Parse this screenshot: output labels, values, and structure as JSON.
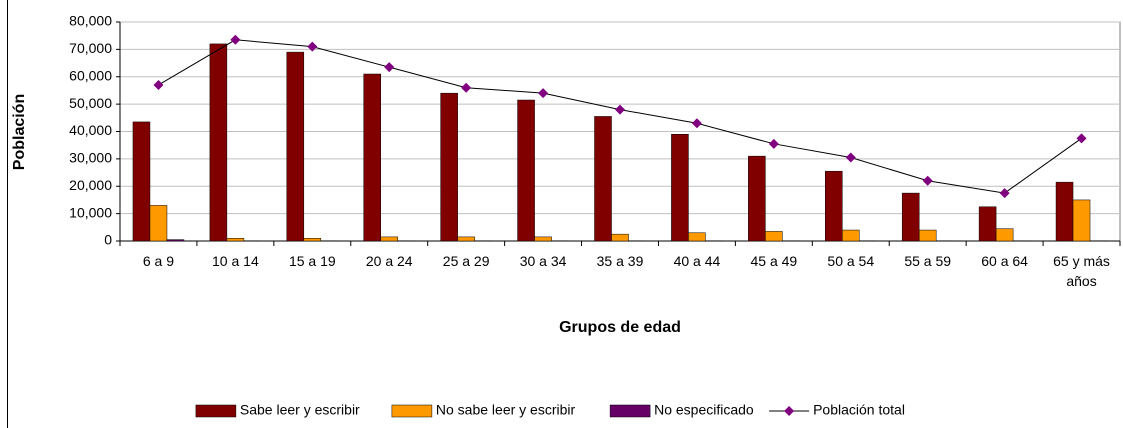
{
  "chart_data": {
    "type": "bar",
    "xlabel": "Grupos de edad",
    "ylabel": "Población",
    "categories": [
      "6 a 9",
      "10 a 14",
      "15 a 19",
      "20 a 24",
      "25 a 29",
      "30 a 34",
      "35 a 39",
      "40 a 44",
      "45 a 49",
      "50 a 54",
      "55 a 59",
      "60 a 64",
      "65 y más años"
    ],
    "series": [
      {
        "name": "Sabe leer y escribir",
        "color": "#800000",
        "type": "bar",
        "values": [
          43500,
          72000,
          69000,
          61000,
          54000,
          51500,
          45500,
          39000,
          31000,
          25500,
          17500,
          12500,
          21500
        ]
      },
      {
        "name": "No sabe leer y escribir",
        "color": "#ff9900",
        "type": "bar",
        "values": [
          13000,
          1000,
          1000,
          1500,
          1500,
          1500,
          2500,
          3000,
          3500,
          4000,
          4000,
          4500,
          15000
        ]
      },
      {
        "name": "No especificado",
        "color": "#660066",
        "type": "bar",
        "values": [
          500,
          100,
          100,
          100,
          100,
          100,
          100,
          100,
          100,
          100,
          100,
          100,
          100
        ]
      },
      {
        "name": "Población total",
        "color": "#000000",
        "marker_color": "#800080",
        "type": "line",
        "values": [
          57000,
          73500,
          71000,
          63500,
          56000,
          54000,
          48000,
          43000,
          35500,
          30500,
          22000,
          17500,
          37500
        ]
      }
    ],
    "ylim": [
      0,
      80000
    ],
    "yticks": [
      0,
      {
        "value": 10000,
        "label": "10,000"
      },
      {
        "value": 20000,
        "label": "20,000"
      },
      {
        "value": 30000,
        "label": "30,000"
      },
      {
        "value": 40000,
        "label": "40,000"
      },
      {
        "value": 50000,
        "label": "50,000"
      },
      {
        "value": 60000,
        "label": "60,000"
      },
      {
        "value": 70000,
        "label": "70,000"
      },
      {
        "value": 80000,
        "label": "80,000"
      }
    ],
    "grid": true,
    "legend": "bottom"
  }
}
